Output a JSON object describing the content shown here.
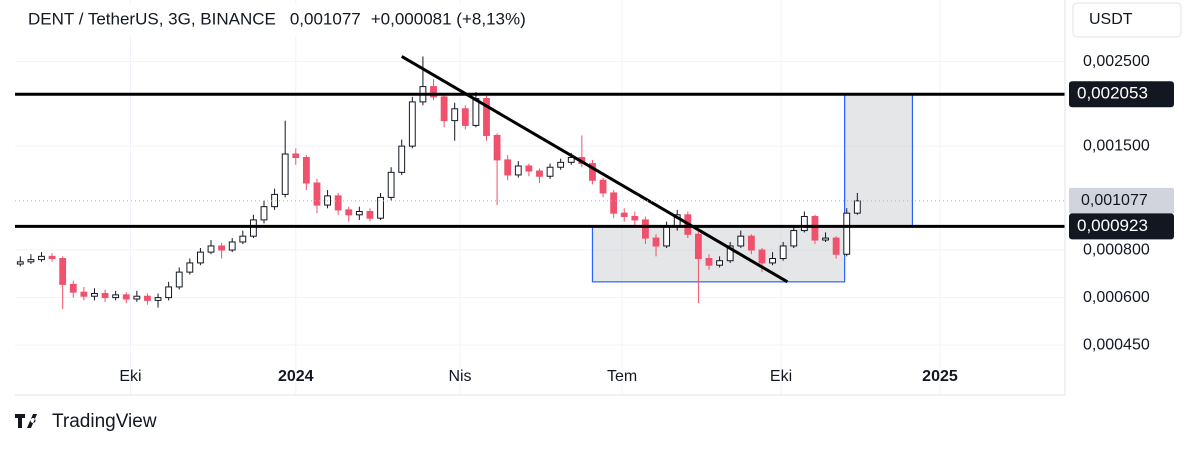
{
  "chart_data": {
    "type": "candlestick",
    "title": "DENT / TetherUS, 3G, BINANCE",
    "price_label": "0,001077",
    "change_label": "+0,000081 (+8,13%)",
    "y_axis_unit": "USDT",
    "log_scale": true,
    "grid": true,
    "up_color": "#ffffff",
    "down_color": "#f0516d",
    "wick_color": "#131722",
    "xlim": [
      -0.5,
      98.6
    ],
    "ylim": [
      0.000424,
      0.00363
    ],
    "xticks": [
      {
        "value": 10.4,
        "label": "Eki"
      },
      {
        "value": 26.0,
        "label": "2024",
        "bold": true
      },
      {
        "value": 41.5,
        "label": "Nis"
      },
      {
        "value": 56.8,
        "label": "Tem"
      },
      {
        "value": 71.8,
        "label": "Eki"
      },
      {
        "value": 86.8,
        "label": "2025",
        "bold": true
      }
    ],
    "yticks": [
      {
        "value": 0.0025,
        "label": "0,002500"
      },
      {
        "value": 0.0015,
        "label": "0,001500"
      },
      {
        "value": 0.0008,
        "label": "0,000800"
      },
      {
        "value": 0.0006,
        "label": "0,000600"
      },
      {
        "value": 0.00045,
        "label": "0,000450"
      }
    ],
    "open": [
      0.000735,
      0.000745,
      0.000755,
      0.00077,
      0.00076,
      0.00065,
      0.00062,
      0.000605,
      0.000615,
      0.0006,
      0.00061,
      0.000595,
      0.000605,
      0.00059,
      0.0006,
      0.00064,
      0.0007,
      0.00074,
      0.00079,
      0.00082,
      0.0008,
      0.00084,
      0.00087,
      0.00096,
      0.00104,
      0.00112,
      0.00143,
      0.0014,
      0.0012,
      0.00105,
      0.00111,
      0.00102,
      0.00099,
      0.00101,
      0.00097,
      0.0011,
      0.00128,
      0.0015,
      0.00196,
      0.00215,
      0.00202,
      0.00175,
      0.00188,
      0.0017,
      0.002,
      0.0016,
      0.00138,
      0.00126,
      0.00133,
      0.00129,
      0.00125,
      0.00132,
      0.00136,
      0.0014,
      0.00135,
      0.00122,
      0.00113,
      0.001,
      0.00098,
      0.00096,
      0.00086,
      0.00082,
      0.00092,
      0.00099,
      0.00088,
      0.00076,
      0.00073,
      0.00075,
      0.00082,
      0.00087,
      0.0008,
      0.00074,
      0.00076,
      0.00082,
      0.0009,
      0.00098,
      0.00085,
      0.00086,
      0.00078,
      0.001
    ],
    "high": [
      0.00077,
      0.00078,
      0.00079,
      0.000785,
      0.00077,
      0.000665,
      0.00064,
      0.000635,
      0.00063,
      0.000625,
      0.00062,
      0.000625,
      0.000615,
      0.000615,
      0.00066,
      0.00072,
      0.00076,
      0.00081,
      0.00085,
      0.000835,
      0.00086,
      0.0009,
      0.00099,
      0.00108,
      0.00116,
      0.00175,
      0.00148,
      0.00142,
      0.00123,
      0.00115,
      0.00113,
      0.00104,
      0.00104,
      0.00103,
      0.00113,
      0.00132,
      0.00156,
      0.00202,
      0.00258,
      0.00225,
      0.00206,
      0.00195,
      0.00192,
      0.00208,
      0.00203,
      0.00162,
      0.00142,
      0.00137,
      0.00135,
      0.00131,
      0.00135,
      0.00139,
      0.00144,
      0.0016,
      0.00138,
      0.00124,
      0.00115,
      0.00103,
      0.00101,
      0.00098,
      0.00088,
      0.00095,
      0.00102,
      0.00101,
      0.0009,
      0.00078,
      0.00077,
      0.00084,
      0.0009,
      0.00088,
      0.00081,
      0.00079,
      0.00084,
      0.00093,
      0.00101,
      0.00099,
      0.00089,
      0.00087,
      0.00103,
      0.00113
    ],
    "low": [
      0.000725,
      0.000735,
      0.000745,
      0.000745,
      0.00056,
      0.0006,
      0.00059,
      0.00059,
      0.000585,
      0.00059,
      0.00058,
      0.000585,
      0.000575,
      0.000565,
      0.00059,
      0.00063,
      0.00069,
      0.00073,
      0.00078,
      0.00076,
      0.00079,
      0.00083,
      0.00086,
      0.00094,
      0.00102,
      0.0011,
      0.00134,
      0.00115,
      0.001,
      0.00103,
      0.00099,
      0.00095,
      0.00096,
      0.00095,
      0.00096,
      0.00108,
      0.00126,
      0.00148,
      0.00192,
      0.00198,
      0.00168,
      0.00155,
      0.00166,
      0.00168,
      0.00155,
      0.00105,
      0.00122,
      0.00124,
      0.00125,
      0.0012,
      0.00123,
      0.0013,
      0.00134,
      0.00132,
      0.00119,
      0.0011,
      0.00097,
      0.00095,
      0.00093,
      0.00083,
      0.00077,
      0.00081,
      0.0009,
      0.00086,
      0.00058,
      0.00071,
      0.00072,
      0.00074,
      0.00081,
      0.00078,
      0.0007,
      0.00073,
      0.00075,
      0.00081,
      0.00089,
      0.00083,
      0.00084,
      0.00076,
      0.00077,
      0.00099
    ],
    "close": [
      0.000745,
      0.000755,
      0.00077,
      0.00076,
      0.00065,
      0.00062,
      0.000605,
      0.000615,
      0.0006,
      0.00061,
      0.000595,
      0.000605,
      0.00059,
      0.0006,
      0.00064,
      0.0007,
      0.00074,
      0.00079,
      0.00082,
      0.0008,
      0.00084,
      0.00087,
      0.00096,
      0.00104,
      0.00112,
      0.00143,
      0.0014,
      0.0012,
      0.00105,
      0.00111,
      0.00102,
      0.00099,
      0.00101,
      0.00097,
      0.0011,
      0.00128,
      0.0015,
      0.00196,
      0.00215,
      0.00202,
      0.00175,
      0.00188,
      0.0017,
      0.002,
      0.0016,
      0.00138,
      0.00126,
      0.00133,
      0.00129,
      0.00125,
      0.00132,
      0.00136,
      0.0014,
      0.00135,
      0.00122,
      0.00113,
      0.001,
      0.00098,
      0.00096,
      0.00086,
      0.00082,
      0.00092,
      0.00099,
      0.00088,
      0.00076,
      0.00073,
      0.00075,
      0.00082,
      0.00087,
      0.0008,
      0.00074,
      0.00076,
      0.00082,
      0.0009,
      0.00098,
      0.00085,
      0.00086,
      0.00078,
      0.001,
      0.001077
    ],
    "levels": [
      {
        "value": 0.002053,
        "label": "0,002053"
      },
      {
        "value": 0.000923,
        "label": "0,000923"
      }
    ],
    "last_price": {
      "value": 0.001077,
      "label": "0,001077"
    },
    "trend_line": {
      "x": [
        36.0,
        72.4
      ],
      "y": [
        0.00258,
        0.00066
      ]
    },
    "boxes": [
      {
        "x": [
          54.0,
          77.8
        ],
        "y": [
          0.00066,
          0.000923
        ]
      },
      {
        "x": [
          77.8,
          84.2
        ],
        "y": [
          0.000923,
          0.002053
        ]
      }
    ]
  },
  "footer": {
    "brand": "TradingView"
  }
}
